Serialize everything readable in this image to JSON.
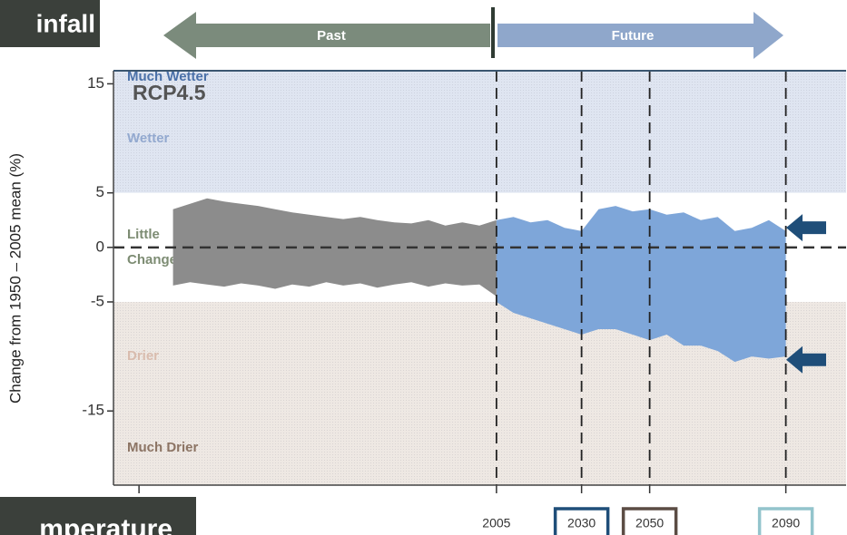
{
  "chart_data": {
    "type": "range_band",
    "title": "infall",
    "footer_tab": "mperature",
    "annotation": "RCP4.5",
    "ylabel": "Change from 1950 – 2005 mean (%)",
    "period_arrows": [
      {
        "label": "Past",
        "color": "#7b8b7c"
      },
      {
        "label": "Future",
        "color": "#8fa7cb"
      }
    ],
    "xlim": [
      1892.5,
      2107.7
    ],
    "ylim": [
      -21.8,
      16.2
    ],
    "yticks": [
      15,
      5,
      0,
      -5,
      -15
    ],
    "xticks": [
      {
        "value": 1900,
        "label": null
      },
      2005,
      2030,
      2050,
      2090
    ],
    "xtick_box_colors": [
      null,
      null,
      "#1f4e79",
      "#5b4c44",
      "#93c4cc"
    ],
    "zero_line": true,
    "zones": [
      {
        "label": "Much Wetter",
        "from": 15,
        "to": 16.2,
        "fill": "#dfe5f1",
        "color": "#4a70a8"
      },
      {
        "label": "Wetter",
        "from": 5,
        "to": 15,
        "fill": "#dfe5f1",
        "color": "#93a9cf"
      },
      {
        "label": "Little Change",
        "from": -5,
        "to": 5,
        "fill": "#ffffff",
        "color": "#7d8c73"
      },
      {
        "label": "Drier",
        "from": -15,
        "to": -5,
        "fill": "#eee8e3",
        "color": "#d9bcae"
      },
      {
        "label": "Much Drier",
        "from": -21.8,
        "to": -15,
        "fill": "#eee8e3",
        "color": "#8c7464"
      }
    ],
    "series": [
      {
        "color": "#8c8c8c",
        "x": [
          1910,
          1915,
          1920,
          1925,
          1930,
          1935,
          1940,
          1945,
          1950,
          1955,
          1960,
          1965,
          1970,
          1975,
          1980,
          1985,
          1990,
          1995,
          2000,
          2005
        ],
        "upper": [
          3.5,
          4,
          4.5,
          4.2,
          4,
          3.8,
          3.5,
          3.2,
          3,
          2.8,
          2.6,
          2.8,
          2.5,
          2.3,
          2.2,
          2.5,
          2,
          2.3,
          2,
          2.5
        ],
        "lower": [
          -3.5,
          -3.2,
          -3.4,
          -3.6,
          -3.3,
          -3.5,
          -3.8,
          -3.4,
          -3.6,
          -3.2,
          -3.5,
          -3.3,
          -3.7,
          -3.4,
          -3.2,
          -3.6,
          -3.3,
          -3.5,
          -3.4,
          -4.5
        ]
      },
      {
        "color": "#7ea6d9",
        "x": [
          2005,
          2010,
          2015,
          2020,
          2025,
          2030,
          2035,
          2040,
          2045,
          2050,
          2055,
          2060,
          2065,
          2070,
          2075,
          2080,
          2085,
          2090
        ],
        "upper": [
          2.5,
          2.8,
          2.3,
          2.5,
          1.8,
          1.5,
          3.5,
          3.8,
          3.3,
          3.5,
          3,
          3.2,
          2.5,
          2.8,
          1.5,
          1.8,
          2.5,
          1.5
        ],
        "lower": [
          -5,
          -6,
          -6.5,
          -7,
          -7.5,
          -8,
          -7.5,
          -7.5,
          -8,
          -8.5,
          -8,
          -9,
          -9,
          -9.5,
          -10.5,
          -10,
          -10.2,
          -10
        ]
      }
    ],
    "markers": [
      {
        "y": 1.8,
        "color": "#1f4e79"
      },
      {
        "y": -10.3,
        "color": "#1f4e79"
      }
    ]
  }
}
